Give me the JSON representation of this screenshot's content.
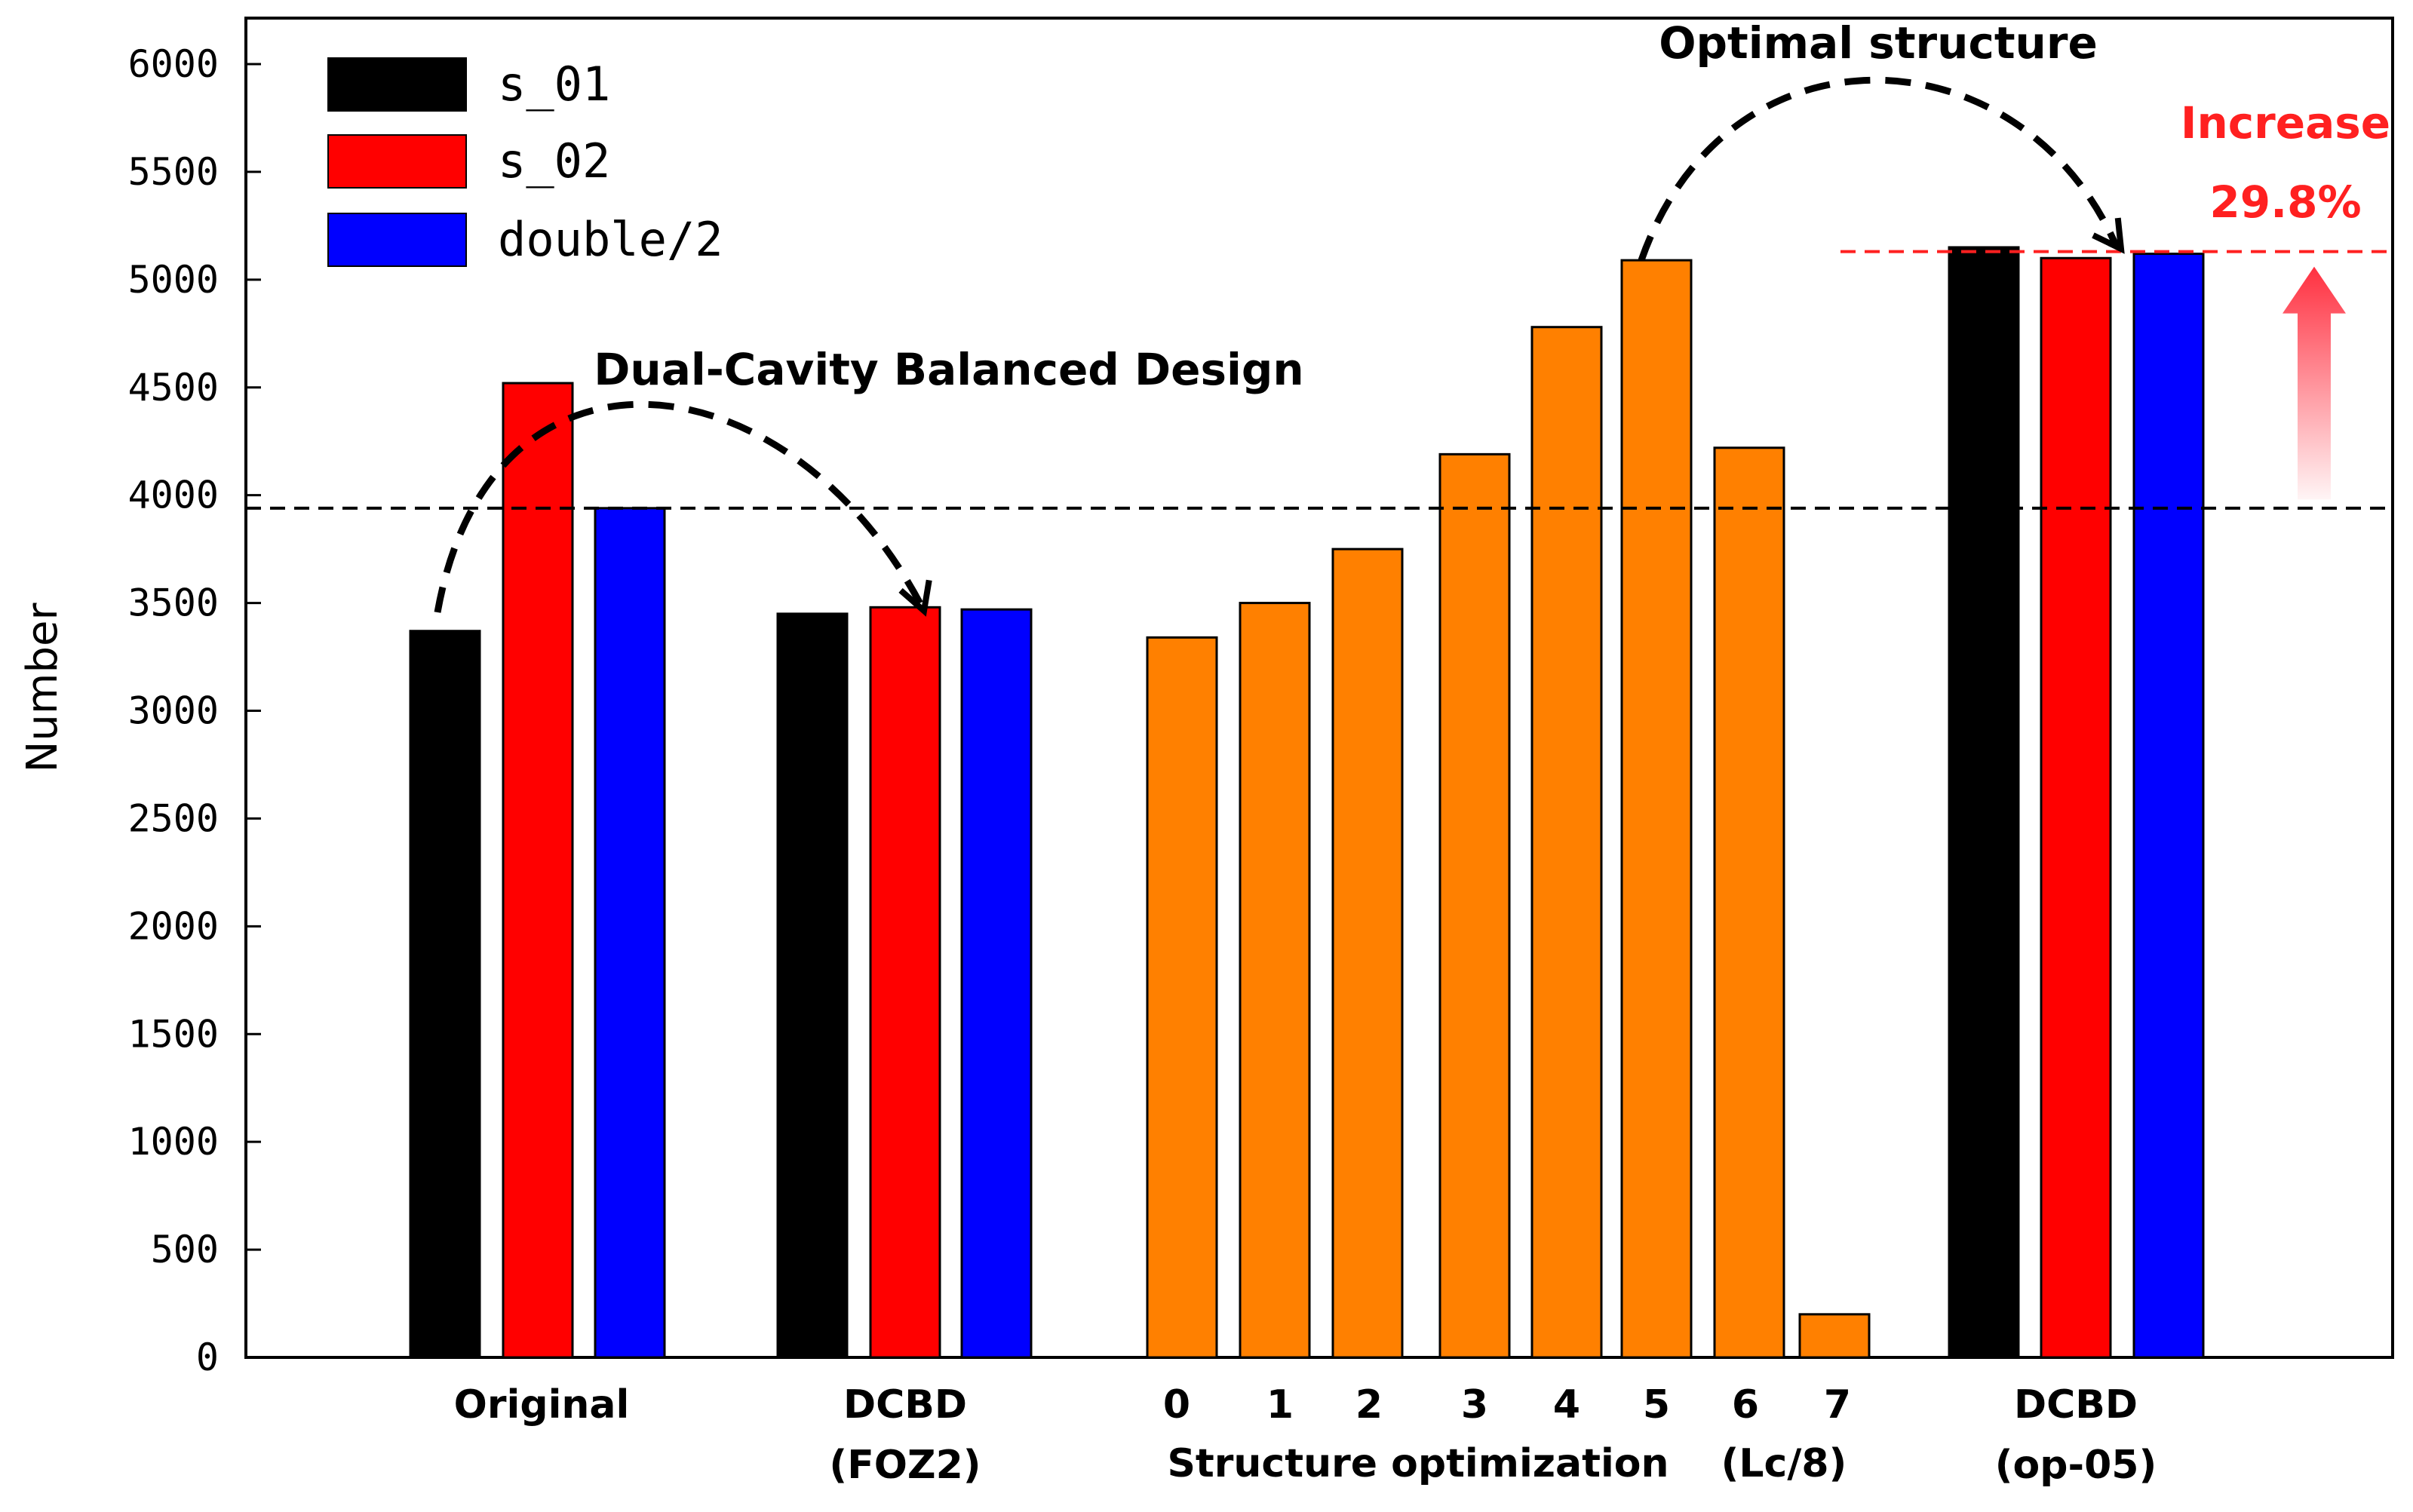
{
  "chart_data": {
    "type": "bar",
    "ylabel": "Number",
    "ylim": [
      0,
      6000
    ],
    "yticks": [
      "0",
      "500",
      "1000",
      "1500",
      "2000",
      "2500",
      "3000",
      "3500",
      "4000",
      "4500",
      "5000",
      "5500",
      "6000"
    ],
    "legend": {
      "position": "top-left",
      "entries": [
        {
          "name": "s_01",
          "color": "#000000"
        },
        {
          "name": "s_02",
          "color": "#ff0000"
        },
        {
          "name": "double/2",
          "color": "#0000ff"
        }
      ]
    },
    "groups": [
      {
        "label": "Original",
        "series": {
          "s_01": 3370,
          "s_02": 4520,
          "double/2": 3940
        }
      },
      {
        "label": "DCBD",
        "sublabel": "(FOZ2)",
        "series": {
          "s_01": 3450,
          "s_02": 3480,
          "double/2": 3470
        }
      },
      {
        "label": "DCBD",
        "sublabel": "(op-05)",
        "series": {
          "s_01": 5150,
          "s_02": 5100,
          "double/2": 5120
        }
      }
    ],
    "structure_optimization": {
      "label": "Structure optimization",
      "end_label": "(Lc/8)",
      "color": "#ff8000",
      "categories": [
        "0",
        "1",
        "2",
        "3",
        "4",
        "5",
        "6",
        "7"
      ],
      "values": [
        3340,
        3500,
        3750,
        4190,
        4780,
        5090,
        4220,
        200
      ]
    },
    "reference_lines": [
      {
        "value": 3940,
        "color": "#000000",
        "style": "dashed"
      },
      {
        "value": 5130,
        "color": "#ff2020",
        "style": "dashed"
      }
    ],
    "annotations": {
      "dual_cavity": "Dual-Cavity Balanced Design",
      "optimal": "Optimal structure",
      "increase": "Increase",
      "increase_pct": "29.8%"
    }
  }
}
